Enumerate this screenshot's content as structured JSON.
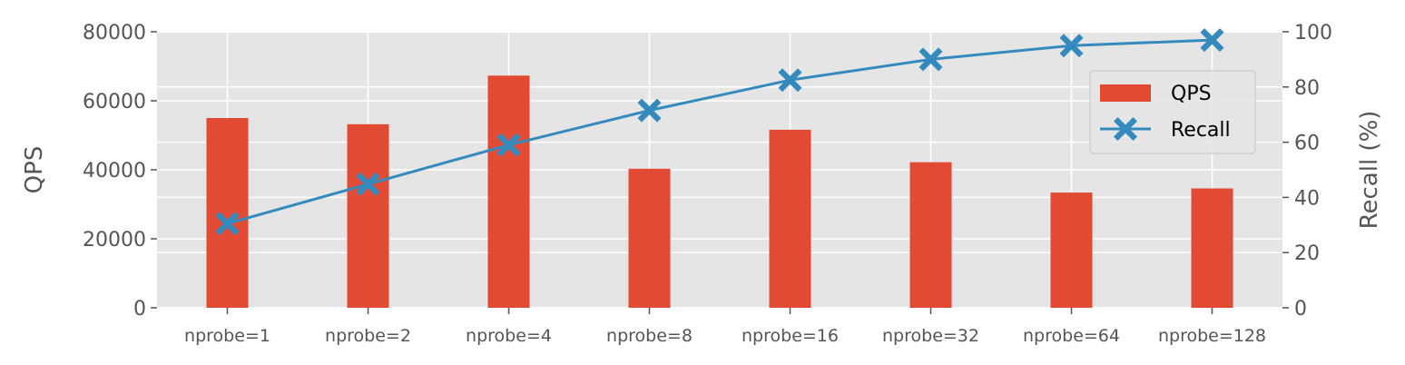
{
  "chart_data": {
    "type": "bar+line",
    "categories": [
      "nprobe=1",
      "nprobe=2",
      "nprobe=4",
      "nprobe=8",
      "nprobe=16",
      "nprobe=32",
      "nprobe=64",
      "nprobe=128"
    ],
    "series": [
      {
        "name": "QPS",
        "type": "bar",
        "axis": "left",
        "color": "#e24a33",
        "values": [
          55000,
          53200,
          67300,
          40300,
          51600,
          42200,
          33400,
          34600
        ]
      },
      {
        "name": "Recall",
        "type": "line",
        "axis": "right",
        "color": "#348abd",
        "marker": "X",
        "values": [
          30.5,
          44.8,
          59.0,
          71.5,
          82.5,
          90.0,
          95.0,
          97.0
        ]
      }
    ],
    "y_left": {
      "label": "QPS",
      "range": [
        0,
        80000
      ],
      "ticks": [
        "0",
        "20000",
        "40000",
        "60000",
        "80000"
      ]
    },
    "y_right": {
      "label": "Recall (%)",
      "range": [
        0,
        100
      ],
      "ticks": [
        "0",
        "20",
        "40",
        "60",
        "80",
        "100"
      ]
    },
    "grid": true,
    "legend_placement": "upper-right"
  }
}
